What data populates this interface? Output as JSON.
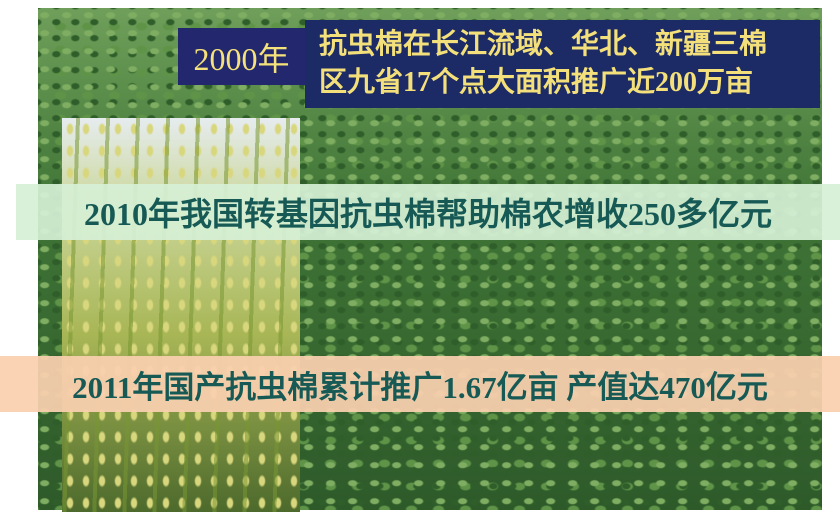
{
  "banner": {
    "year": "2000年",
    "lines": [
      "抗虫棉在长江流域、华北、新疆三棉",
      "区九省17个点大面积推广近200万亩"
    ]
  },
  "bands": [
    "2010年我国转基因抗虫棉帮助棉农增收250多亿元",
    "2011年国产抗虫棉累计推广1.67亿亩 产值达470亿元"
  ]
}
